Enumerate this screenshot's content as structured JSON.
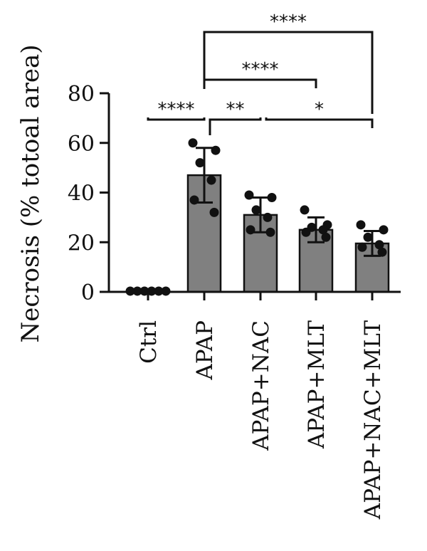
{
  "chart_data": {
    "type": "bar",
    "title": "",
    "xlabel": "",
    "ylabel": "Necrosis (% totoal area)",
    "ylim": [
      0,
      80
    ],
    "yticks": [
      "0",
      "20",
      "40",
      "60",
      "80"
    ],
    "categories": [
      "Ctrl",
      "APAP",
      "APAP+NAC",
      "APAP+MLT",
      "APAP+NAC+MLT"
    ],
    "values": [
      0.3,
      47,
      31,
      25,
      19.5
    ],
    "error": [
      0.3,
      11,
      7,
      5,
      5
    ],
    "points": [
      [
        0.3,
        0.3,
        0.3,
        0.3,
        0.3,
        0.3
      ],
      [
        60,
        57,
        52,
        45,
        37,
        32
      ],
      [
        39,
        38,
        33,
        30,
        25,
        24
      ],
      [
        33,
        27,
        26,
        25,
        24,
        22
      ],
      [
        27,
        25,
        22,
        19,
        18,
        16
      ]
    ],
    "bar_color": "#808080",
    "comparisons": [
      {
        "from": 0,
        "to": 1,
        "label": "****"
      },
      {
        "from": 1,
        "to": 2,
        "label": "**"
      },
      {
        "from": 2,
        "to": 4,
        "label": "*"
      },
      {
        "from": 1,
        "to": 3,
        "label": "****"
      },
      {
        "from": 1,
        "to": 4,
        "label": "****"
      }
    ],
    "grid": false,
    "legend": "none"
  }
}
